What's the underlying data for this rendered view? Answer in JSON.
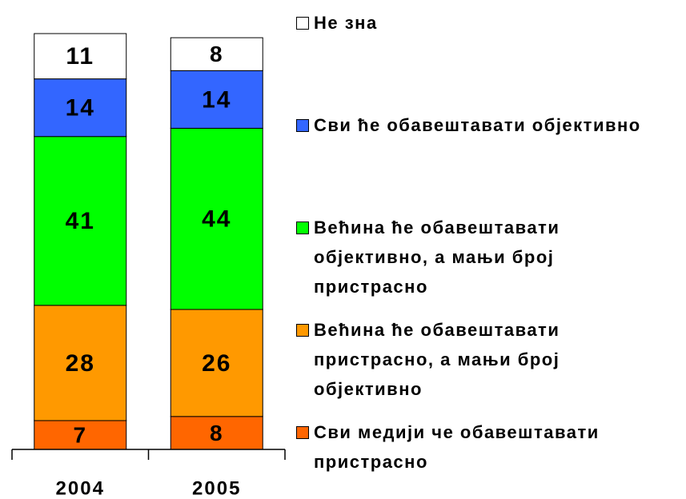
{
  "chart_data": {
    "type": "stacked_bar",
    "categories": [
      "2004",
      "2005"
    ],
    "series": [
      {
        "name": "Сви медији че обавештавати пристрасно",
        "color": "#ff6600",
        "values": [
          7,
          8
        ]
      },
      {
        "name": "Већина ће обавештавати пристрасно, а мањи број објективно",
        "color": "#ff9900",
        "values": [
          28,
          26
        ]
      },
      {
        "name": "Већина ће обавештавати објективно, а мањи број пристрасно",
        "color": "#00ff00",
        "values": [
          41,
          44
        ]
      },
      {
        "name": "Сви ће обавештавати објективно",
        "color": "#3366ff",
        "values": [
          14,
          14
        ]
      },
      {
        "name": "Не зна",
        "color": "#ffffff",
        "values": [
          11,
          8
        ]
      }
    ]
  }
}
